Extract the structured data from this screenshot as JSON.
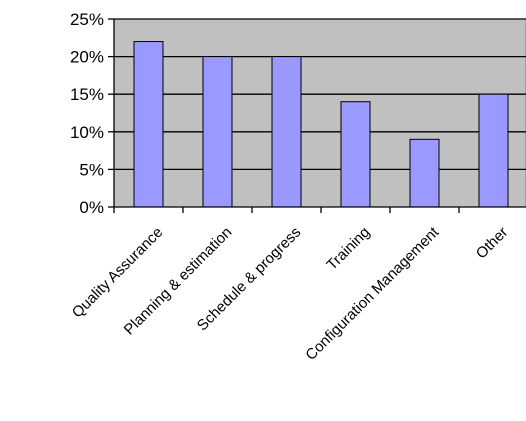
{
  "chart_data": {
    "type": "bar",
    "categories": [
      "Quality Assurance",
      "Planning & estimation",
      "Schedule & progress",
      "Training",
      "Configuration Management",
      "Other"
    ],
    "values": [
      22,
      20,
      20,
      14,
      9,
      15
    ],
    "ylim": [
      0,
      25
    ],
    "yticks": [
      0,
      5,
      10,
      15,
      20,
      25
    ],
    "ytick_labels": [
      "0%",
      "5%",
      "10%",
      "15%",
      "20%",
      "25%"
    ],
    "grid": true,
    "legend": "none",
    "colors": {
      "plot_background": "#c0c0c0",
      "bar_fill": "#9999ff",
      "bar_stroke": "#000000",
      "gridline": "#000000",
      "axis": "#000000",
      "plot_border": "#808080"
    }
  }
}
